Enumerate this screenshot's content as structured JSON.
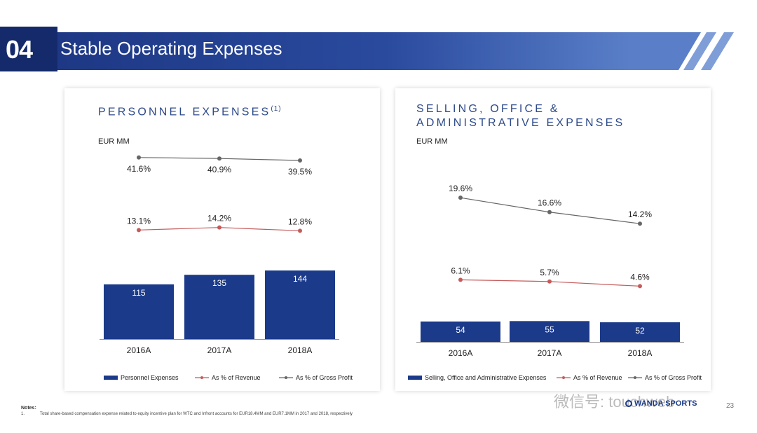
{
  "header": {
    "section_number": "04",
    "title": "Stable Operating Expenses"
  },
  "panels": {
    "left": {
      "title": "PERSONNEL EXPENSES",
      "superscript": "(1)",
      "unit": "EUR MM"
    },
    "right": {
      "title_line1": "SELLING, OFFICE &",
      "title_line2": "ADMINISTRATIVE EXPENSES",
      "unit": "EUR MM"
    }
  },
  "chart_data": [
    {
      "type": "bar",
      "title": "PERSONNEL EXPENSES(1)",
      "ylabel": "EUR MM",
      "categories": [
        "2016A",
        "2017A",
        "2018A"
      ],
      "series": [
        {
          "name": "Personnel Expenses",
          "type": "bar",
          "values": [
            115,
            135,
            144
          ],
          "labels": [
            "115",
            "135",
            "144"
          ]
        },
        {
          "name": "As % of Revenue",
          "type": "line",
          "values": [
            13.1,
            14.2,
            12.8
          ],
          "labels": [
            "13.1%",
            "14.2%",
            "12.8%"
          ]
        },
        {
          "name": "As % of Gross Profit",
          "type": "line",
          "values": [
            41.6,
            40.9,
            39.5
          ],
          "labels": [
            "41.6%",
            "40.9%",
            "39.5%"
          ]
        }
      ],
      "legend_position": "bottom"
    },
    {
      "type": "bar",
      "title": "SELLING, OFFICE & ADMINISTRATIVE EXPENSES",
      "ylabel": "EUR MM",
      "categories": [
        "2016A",
        "2017A",
        "2018A"
      ],
      "series": [
        {
          "name": "Selling, Office and Administrative Expenses",
          "type": "bar",
          "values": [
            54,
            55,
            52
          ],
          "labels": [
            "54",
            "55",
            "52"
          ]
        },
        {
          "name": "As % of Revenue",
          "type": "line",
          "values": [
            6.1,
            5.7,
            4.6
          ],
          "labels": [
            "6.1%",
            "5.7%",
            "4.6%"
          ]
        },
        {
          "name": "As % of Gross Profit",
          "type": "line",
          "values": [
            19.6,
            16.6,
            14.2
          ],
          "labels": [
            "19.6%",
            "16.6%",
            "14.2%"
          ]
        }
      ],
      "legend_position": "bottom"
    }
  ],
  "colors": {
    "bar": "#1b3a8a",
    "revenue_line": "#c45b5b",
    "gross_profit_line": "#666666",
    "title": "#2d4a8a",
    "banner": "#1b3a8a"
  },
  "notes": {
    "heading": "Notes:",
    "number": "1.",
    "text": "Total share-based compensation expense related to equity incentive plan for WTC and Infront accounts for EUR18.4MM and EUR7.1MM in 2017 and 2018, respectively"
  },
  "footer": {
    "watermark": "微信号: touchweb",
    "logo_text": "WANDA SPORTS",
    "page_number": "23"
  }
}
